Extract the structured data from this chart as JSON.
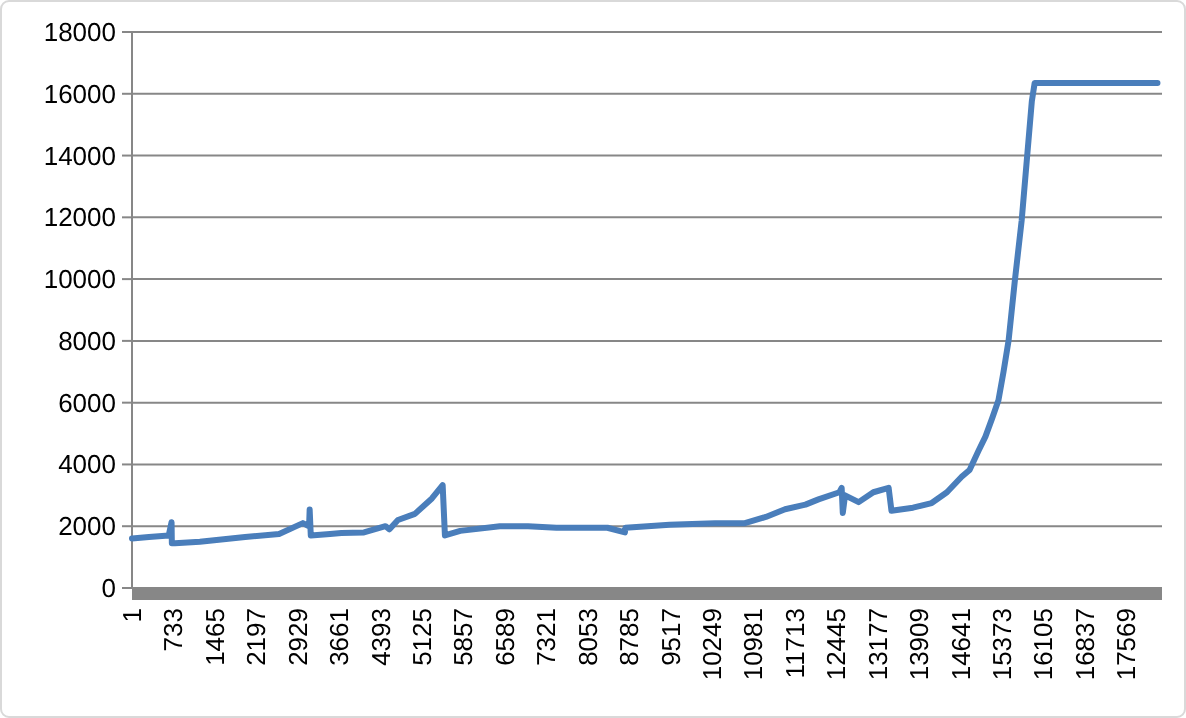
{
  "chart_data": {
    "type": "line",
    "x": [
      1,
      300,
      650,
      700,
      705,
      760,
      1200,
      2000,
      2600,
      3020,
      3130,
      3140,
      3160,
      3500,
      3700,
      4100,
      4480,
      4550,
      4700,
      5000,
      5300,
      5490,
      5530,
      5800,
      6500,
      7000,
      7500,
      7900,
      8400,
      8710,
      8720,
      9500,
      10300,
      10830,
      11200,
      11540,
      11900,
      12130,
      12500,
      12540,
      12560,
      12600,
      12840,
      13100,
      13370,
      13420,
      13800,
      14130,
      14400,
      14660,
      14800,
      14960,
      15080,
      15200,
      15310,
      15400,
      15490,
      15600,
      15720,
      15810,
      15900,
      15950,
      16500,
      17200,
      18120
    ],
    "series": [
      {
        "color": "#4a7ebb",
        "values": [
          1600,
          1650,
          1700,
          2130,
          1450,
          1450,
          1500,
          1650,
          1750,
          2100,
          2000,
          2540,
          1700,
          1750,
          1780,
          1800,
          2000,
          1900,
          2200,
          2400,
          2900,
          3330,
          1700,
          1850,
          2000,
          2000,
          1950,
          1950,
          1950,
          1800,
          1950,
          2050,
          2100,
          2100,
          2300,
          2550,
          2700,
          2870,
          3100,
          3240,
          2430,
          3000,
          2780,
          3100,
          3240,
          2500,
          2600,
          2750,
          3100,
          3600,
          3820,
          4450,
          4900,
          5500,
          6080,
          7000,
          8020,
          9950,
          11890,
          13820,
          15760,
          16350,
          16350,
          16350,
          16350
        ]
      }
    ],
    "xlim": [
      1,
      18200
    ],
    "ylim": [
      0,
      18000
    ],
    "xticks": [
      1,
      733,
      1465,
      2197,
      2929,
      3661,
      4393,
      5125,
      5857,
      6589,
      7321,
      8053,
      8785,
      9517,
      10249,
      10981,
      11713,
      12445,
      13177,
      13909,
      14641,
      15373,
      16105,
      16837,
      17569
    ],
    "yticks": [
      0,
      2000,
      4000,
      6000,
      8000,
      10000,
      12000,
      14000,
      16000,
      18000
    ],
    "grid": "y"
  }
}
